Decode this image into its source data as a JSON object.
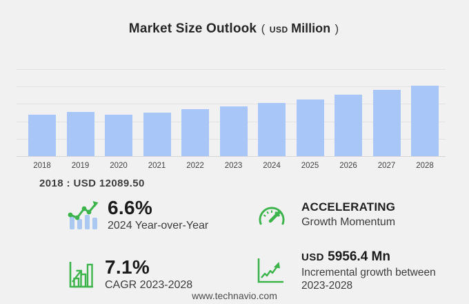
{
  "title": {
    "main": "Market Size Outlook",
    "open_paren": "(",
    "currency": "USD",
    "unit": "Million",
    "close_paren": ")"
  },
  "chart_data": {
    "type": "bar",
    "title": "Market Size Outlook (USD Million)",
    "xlabel": "",
    "ylabel": "USD Million",
    "categories": [
      "2018",
      "2019",
      "2020",
      "2021",
      "2022",
      "2023",
      "2024",
      "2025",
      "2026",
      "2027",
      "2028"
    ],
    "values": [
      12089.5,
      12895,
      12100,
      12790,
      13700,
      14550,
      15510,
      16520,
      17870,
      19280,
      20506.4
    ],
    "ylim": [
      0,
      25400
    ],
    "grid": "horizontal",
    "gridline_count": 6,
    "legend": "none",
    "bar_color": "#a8c6f8",
    "annotation": "2018 : USD 12089.50"
  },
  "annotation": "2018 : USD 12089.50",
  "stats": [
    {
      "icon": "trend-bars-icon",
      "value": "6.6%",
      "label": "2024 Year-over-Year"
    },
    {
      "icon": "speedometer-icon",
      "value": "ACCELERATING",
      "label": "Growth Momentum"
    },
    {
      "icon": "bar-chart-growth-icon",
      "value": "7.1%",
      "label": "CAGR 2023-2028"
    },
    {
      "icon": "line-chart-growth-icon",
      "currency": "USD",
      "value": "5956.4 Mn",
      "label": "Incremental growth between 2023-2028"
    }
  ],
  "footer": {
    "url": "www.technavio.com"
  },
  "colors": {
    "background": "#f1f1f2",
    "bar": "#a8c6f8",
    "gridline": "#e2e2e4",
    "baseline": "#d7d7d9",
    "green_accent": "#3cb44b",
    "icon_blue": "#aac8f0",
    "text_dark": "#1a1a1a",
    "text_medium": "#3b3b3b"
  }
}
